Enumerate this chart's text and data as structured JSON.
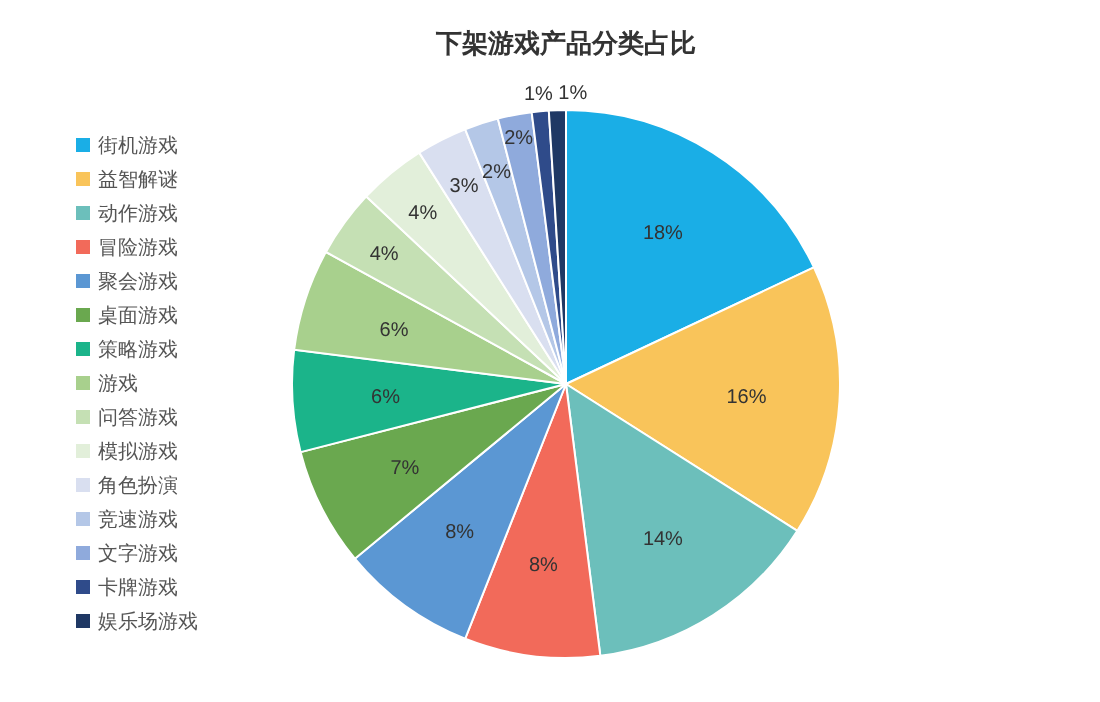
{
  "chart_data": {
    "type": "pie",
    "title": "下架游戏产品分类占比",
    "categories": [
      "街机游戏",
      "益智解谜",
      "动作游戏",
      "冒险游戏",
      "聚会游戏",
      "桌面游戏",
      "策略游戏",
      "游戏",
      "问答游戏",
      "模拟游戏",
      "角色扮演",
      "竞速游戏",
      "文字游戏",
      "卡牌游戏",
      "娱乐场游戏"
    ],
    "values": [
      18,
      16,
      14,
      8,
      8,
      7,
      6,
      6,
      4,
      4,
      3,
      2,
      2,
      1,
      1
    ],
    "colors": [
      "#1aaee6",
      "#f9c45a",
      "#6cbfbb",
      "#f26a5a",
      "#5b97d3",
      "#6aa84f",
      "#1bb48a",
      "#a8d08d",
      "#c5e0b4",
      "#e2efda",
      "#d9dff0",
      "#b4c7e7",
      "#8faadc",
      "#2f4b8a",
      "#1f3864"
    ],
    "value_labels": [
      "18%",
      "16%",
      "14%",
      "8%",
      "8%",
      "7%",
      "6%",
      "6%",
      "4%",
      "4%",
      "3%",
      "2%",
      "2%",
      "1%",
      "1%"
    ],
    "legend": "left"
  }
}
